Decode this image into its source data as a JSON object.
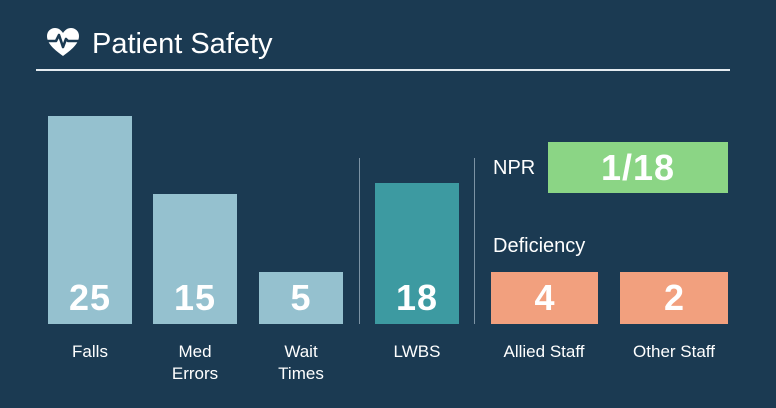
{
  "header": {
    "title": "Patient Safety",
    "icon": "heart-pulse-icon"
  },
  "metrics": {
    "falls": {
      "label_lines": [
        "Falls"
      ],
      "value": "25"
    },
    "med_errors": {
      "label_lines": [
        "Med",
        "Errors"
      ],
      "value": "15"
    },
    "wait_times": {
      "label_lines": [
        "Wait",
        "Times"
      ],
      "value": "5"
    },
    "lwbs": {
      "label_lines": [
        "LWBS"
      ],
      "value": "18"
    }
  },
  "npr": {
    "label": "NPR",
    "value": "1/18"
  },
  "deficiency": {
    "label": "Deficiency",
    "allied_staff": {
      "label": "Allied Staff",
      "value": "4"
    },
    "other_staff": {
      "label": "Other Staff",
      "value": "2"
    }
  },
  "colors": {
    "background": "#1b3a52",
    "bar_light": "#95c1cf",
    "bar_teal": "#3d9aa1",
    "npr_green": "#8bd585",
    "deficiency_salmon": "#f2a07e"
  }
}
